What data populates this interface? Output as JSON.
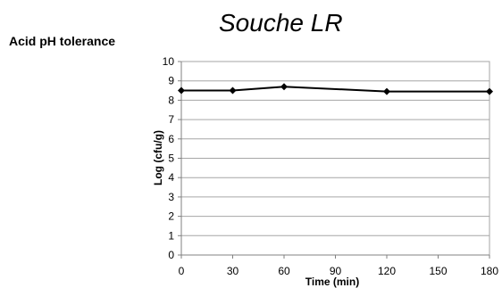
{
  "title": "Souche LR",
  "subtitle": "Acid pH tolerance",
  "chart_data": {
    "type": "line",
    "title": "Souche LR",
    "subtitle": "Acid pH tolerance",
    "xlabel": "Time (min)",
    "ylabel": "Log (cfu/g)",
    "x_ticks": [
      0,
      30,
      60,
      90,
      120,
      150,
      180
    ],
    "y_ticks": [
      0,
      1,
      2,
      3,
      4,
      5,
      6,
      7,
      8,
      9,
      10
    ],
    "xlim": [
      0,
      180
    ],
    "ylim": [
      0,
      10
    ],
    "grid": "horizontal",
    "legend": "none",
    "series": [
      {
        "x": [
          0,
          30,
          60,
          120,
          180
        ],
        "y": [
          8.5,
          8.5,
          8.7,
          8.45,
          8.45
        ],
        "color": "#000000",
        "marker": "diamond"
      }
    ]
  }
}
